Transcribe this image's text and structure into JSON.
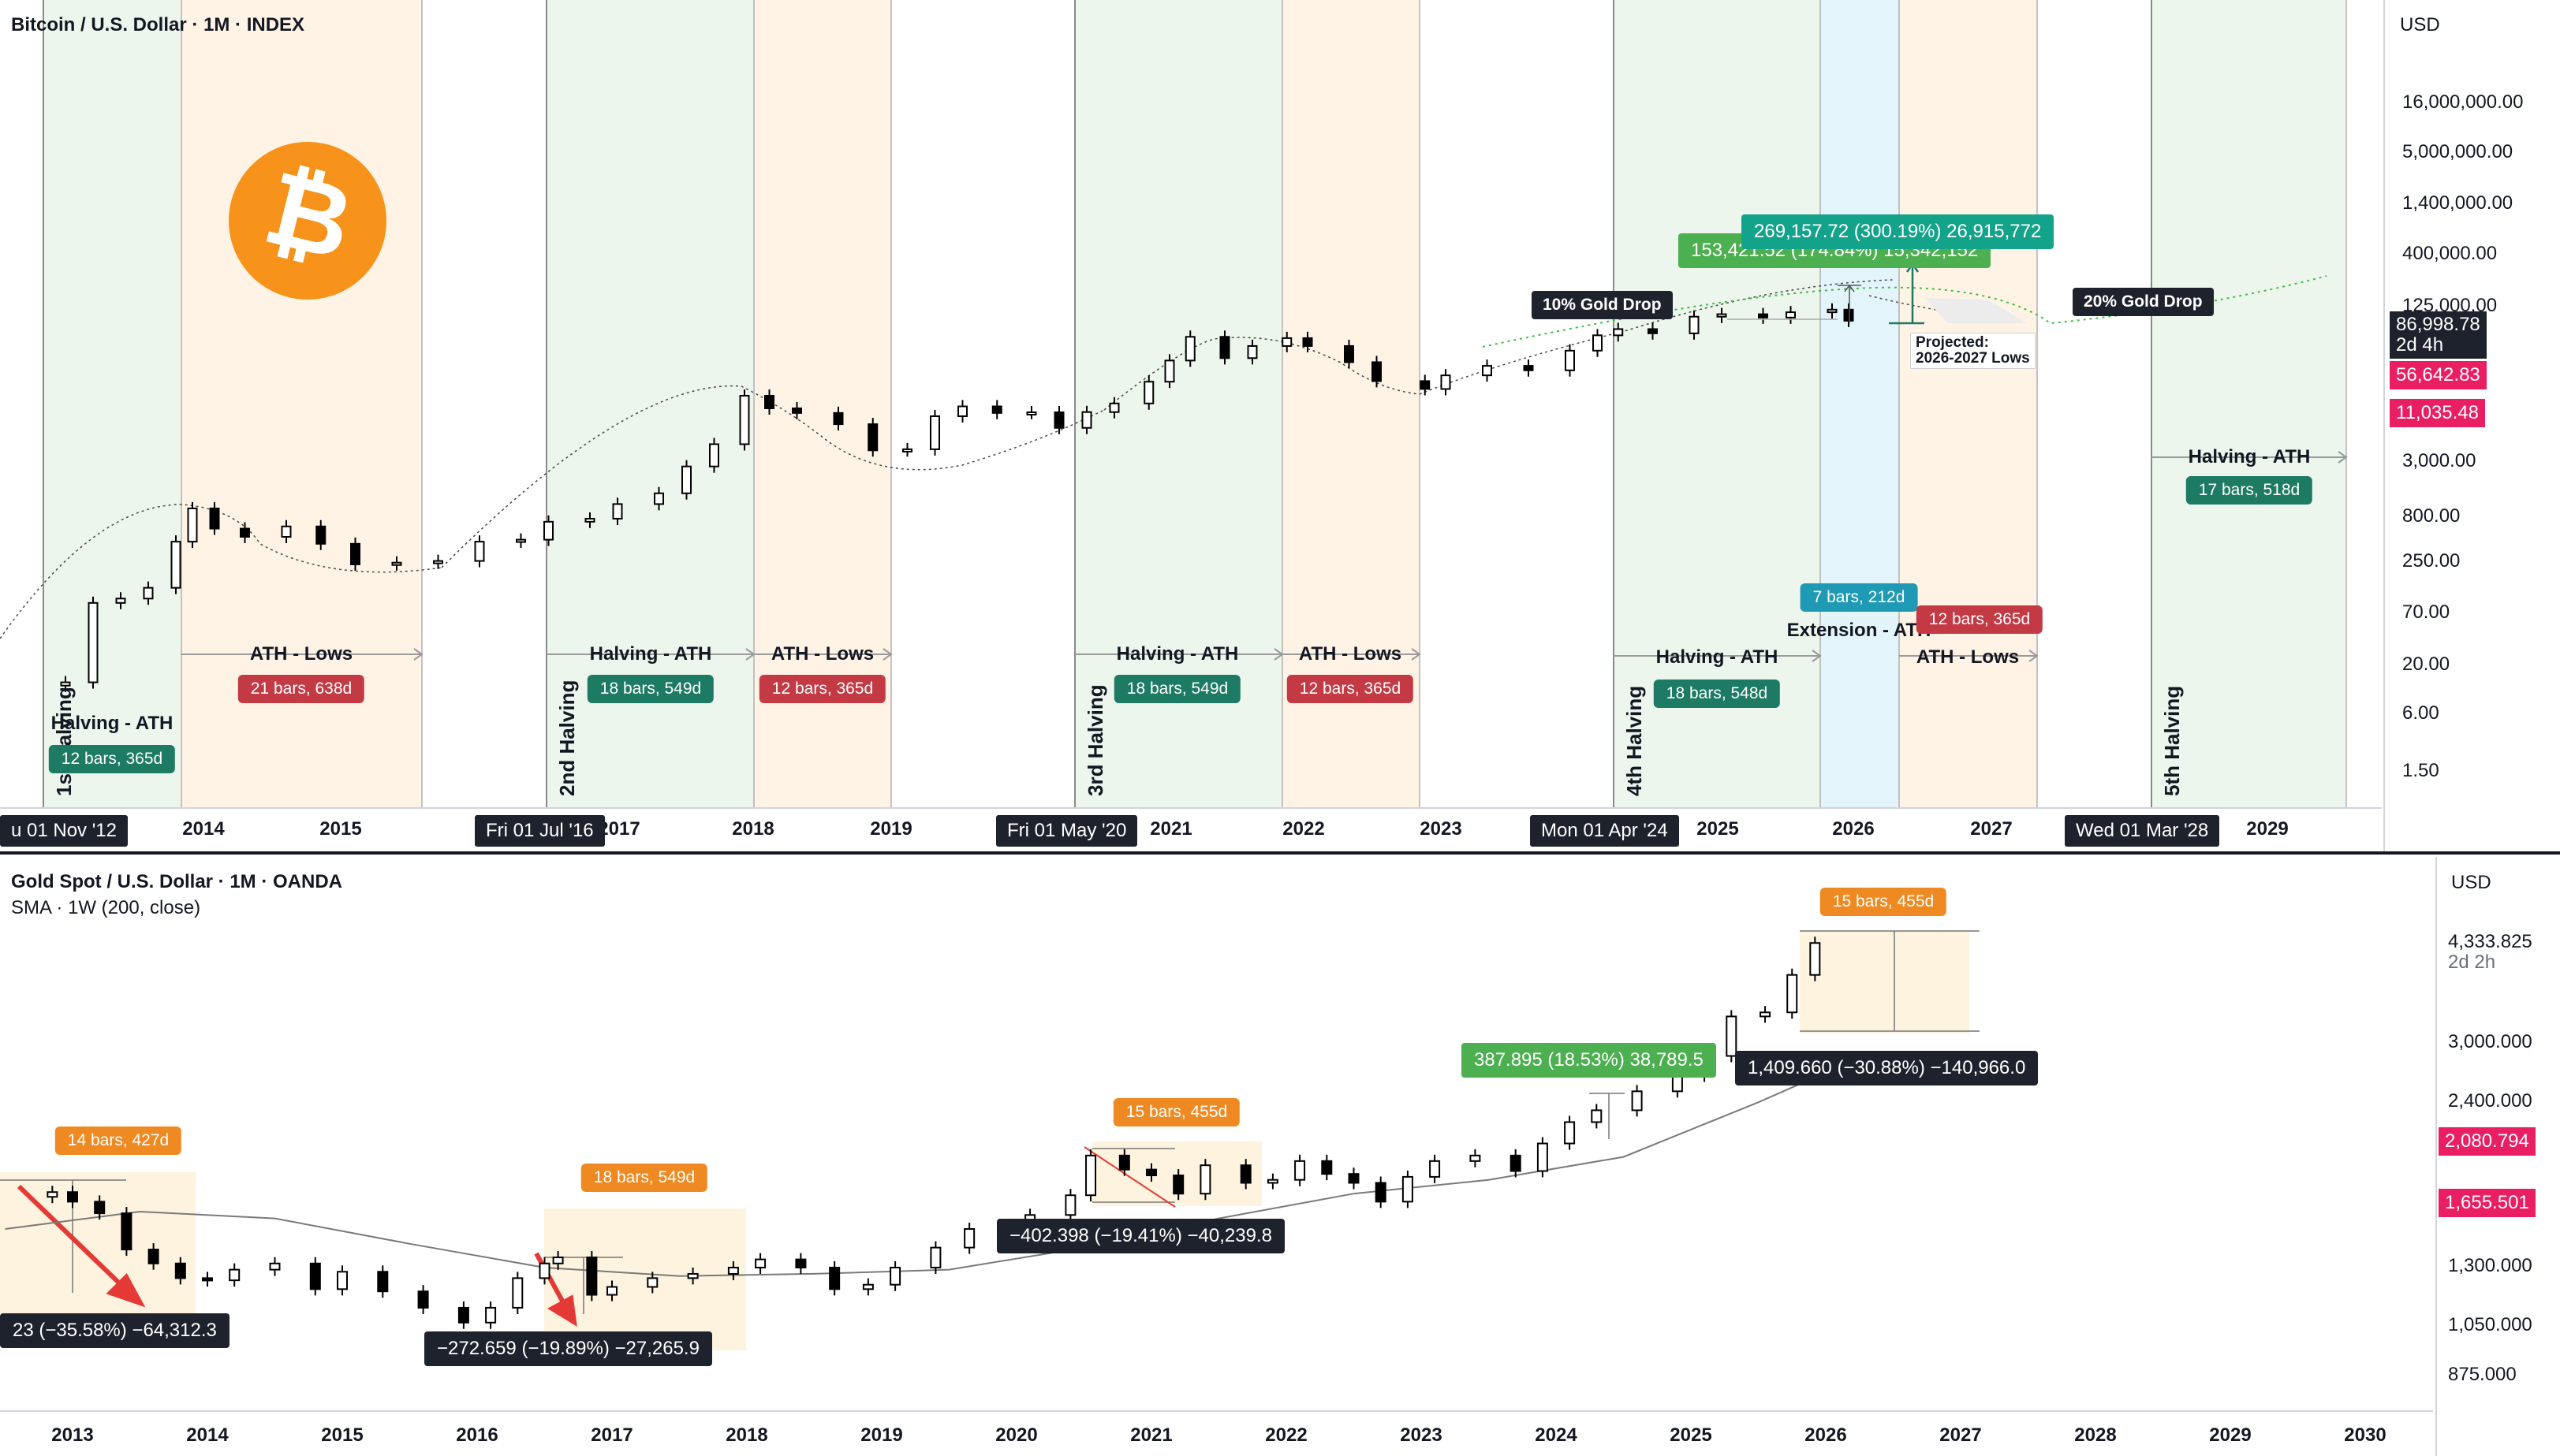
{
  "btc_pane": {
    "title": "Bitcoin / U.S. Dollar · 1M · INDEX",
    "currency": "USD",
    "price_scale": [
      "16,000,000.00",
      "5,000,000.00",
      "1,400,000.00",
      "400,000.00",
      "125,000.00",
      "3,000.00",
      "800.00",
      "250.00",
      "70.00",
      "20.00",
      "6.00",
      "1.50"
    ],
    "last_price": "86,998.78",
    "countdown": "2d 4h",
    "price_tag_2": "56,642.83",
    "price_tag_3": "11,035.48",
    "years": [
      "2014",
      "2015",
      "2017",
      "2018",
      "2019",
      "2021",
      "2022",
      "2023",
      "2025",
      "2026",
      "2027",
      "2029"
    ],
    "date_flags": [
      "u 01 Nov '12",
      "Fri 01 Jul '16",
      "Fri 01 May '20",
      "Mon 01 Apr '24",
      "Wed 01 Mar '28"
    ],
    "halvings": [
      "1st Halving",
      "2nd Halving",
      "3rd Halving",
      "4th Halving",
      "5th Halving"
    ],
    "labels": {
      "halving_ath": "Halving - ATH",
      "ath_lows": "ATH - Lows",
      "extension_ath": "Extension - ATH"
    },
    "pills": {
      "c1_halving_ath": "12 bars, 365d",
      "c1_ath_lows": "21 bars, 638d",
      "c2_halving_ath": "18 bars, 549d",
      "c2_ath_lows": "12 bars, 365d",
      "c3_halving_ath": "18 bars, 549d",
      "c3_ath_lows": "12 bars, 365d",
      "c4_halving_ath": "18 bars, 548d",
      "c4_extension": "7 bars, 212d",
      "c4_ath_lows": "12 bars, 365d",
      "c5_halving_ath": "17 bars, 518d"
    },
    "gold_drop_10": "10% Gold Drop",
    "gold_drop_20": "20% Gold Drop",
    "projected_note": "Projected:\n2026-2027 Lows",
    "measure_top": "269,157.72 (300.19%) 26,915,772",
    "measure_under": "153,421.52 (174.84%) 15,342,152"
  },
  "gold_pane": {
    "title": "Gold Spot / U.S. Dollar · 1M · OANDA",
    "indicator": "SMA · 1W (200, close)",
    "currency": "USD",
    "price_scale": [
      "4,333.825",
      "3,000.000",
      "2,400.000",
      "1,300.000",
      "1,050.000",
      "875.000"
    ],
    "last_price": "4,333.825",
    "countdown": "2d 2h",
    "price_tag_2": "2,080.794",
    "price_tag_3": "1,655.501",
    "years": [
      "2013",
      "2014",
      "2015",
      "2016",
      "2017",
      "2018",
      "2019",
      "2020",
      "2021",
      "2022",
      "2023",
      "2024",
      "2025",
      "2026",
      "2027",
      "2028",
      "2029",
      "2030"
    ],
    "pills": {
      "p1": "14 bars, 427d",
      "p2": "18 bars, 549d",
      "p3": "15 bars, 455d",
      "p4": "15 bars, 455d"
    },
    "measures": {
      "m1": "23 (−35.58%) −64,312.3",
      "m2": "−272.659 (−19.89%) −27,265.9",
      "m3": "−402.398 (−19.41%) −40,239.8",
      "m4": "387.895 (18.53%) 38,789.5",
      "m5": "1,409.660 (−30.88%) −140,966.0"
    }
  },
  "colors": {
    "halving_ath_zone": "#e8f5e9",
    "ath_lows_zone": "#fff3e6",
    "extension_zone": "#e3f4fb",
    "bitcoin_orange": "#f7931a",
    "candle_up": "#ffffff",
    "candle_down": "#000000"
  },
  "icons": {
    "bitcoin_logo": "bitcoin-logo-icon"
  },
  "chart_data": [
    {
      "type": "candlestick",
      "title": "Bitcoin / U.S. Dollar · 1M · INDEX",
      "y_scale": "log",
      "x_range": [
        2012.5,
        2030.0
      ],
      "series": [
        {
          "close": [
            [
              2012.9,
              12
            ],
            [
              2013.0,
              13
            ],
            [
              2013.2,
              90
            ],
            [
              2013.4,
              100
            ],
            [
              2013.6,
              130
            ],
            [
              2013.8,
              400
            ],
            [
              2013.92,
              900
            ],
            [
              2014.08,
              550
            ],
            [
              2014.3,
              450
            ],
            [
              2014.6,
              580
            ],
            [
              2014.85,
              380
            ],
            [
              2015.1,
              230
            ],
            [
              2015.4,
              240
            ],
            [
              2015.7,
              250
            ],
            [
              2016.0,
              400
            ],
            [
              2016.3,
              420
            ],
            [
              2016.5,
              650
            ],
            [
              2016.8,
              700
            ],
            [
              2017.0,
              1000
            ],
            [
              2017.3,
              1300
            ],
            [
              2017.5,
              2500
            ],
            [
              2017.7,
              4300
            ],
            [
              2017.92,
              14000
            ],
            [
              2018.1,
              10300
            ],
            [
              2018.3,
              9200
            ],
            [
              2018.6,
              7000
            ],
            [
              2018.85,
              3700
            ],
            [
              2019.1,
              3800
            ],
            [
              2019.3,
              8500
            ],
            [
              2019.5,
              10800
            ],
            [
              2019.75,
              9200
            ],
            [
              2020.0,
              9350
            ],
            [
              2020.2,
              6400
            ],
            [
              2020.4,
              9400
            ],
            [
              2020.6,
              11600
            ],
            [
              2020.85,
              19700
            ],
            [
              2021.0,
              33000
            ],
            [
              2021.15,
              58800
            ],
            [
              2021.4,
              35000
            ],
            [
              2021.6,
              47000
            ],
            [
              2021.85,
              57000
            ],
            [
              2022.0,
              47000
            ],
            [
              2022.3,
              31700
            ],
            [
              2022.5,
              20000
            ],
            [
              2022.85,
              16500
            ],
            [
              2023.0,
              23000
            ],
            [
              2023.3,
              29000
            ],
            [
              2023.6,
              26000
            ],
            [
              2023.9,
              42000
            ],
            [
              2024.1,
              61000
            ],
            [
              2024.25,
              71000
            ],
            [
              2024.5,
              64000
            ],
            [
              2024.8,
              96000
            ],
            [
              2025.0,
              102000
            ],
            [
              2025.3,
              94000
            ],
            [
              2025.5,
              107000
            ],
            [
              2025.8,
              114000
            ],
            [
              2025.92,
              86998.78
            ]
          ]
        }
      ],
      "cycle_segments": [
        {
          "name": "Halving - ATH",
          "start": 2012.83,
          "end": 2013.92,
          "duration": "12 bars, 365d"
        },
        {
          "name": "ATH - Lows",
          "start": 2013.92,
          "end": 2015.67,
          "duration": "21 bars, 638d"
        },
        {
          "name": "Halving - ATH",
          "start": 2016.5,
          "end": 2017.92,
          "duration": "18 bars, 549d"
        },
        {
          "name": "ATH - Lows",
          "start": 2017.92,
          "end": 2018.92,
          "duration": "12 bars, 365d"
        },
        {
          "name": "Halving - ATH",
          "start": 2020.33,
          "end": 2021.83,
          "duration": "18 bars, 549d"
        },
        {
          "name": "ATH - Lows",
          "start": 2021.83,
          "end": 2022.83,
          "duration": "12 bars, 365d"
        },
        {
          "name": "Halving - ATH",
          "start": 2024.25,
          "end": 2025.75,
          "duration": "18 bars, 548d"
        },
        {
          "name": "Extension - ATH",
          "start": 2025.75,
          "end": 2026.33,
          "duration": "7 bars, 212d"
        },
        {
          "name": "ATH - Lows",
          "start": 2026.33,
          "end": 2027.33,
          "duration": "12 bars, 365d"
        },
        {
          "name": "Halving - ATH",
          "start": 2028.17,
          "end": 2029.58,
          "duration": "17 bars, 518d"
        }
      ]
    },
    {
      "type": "candlestick",
      "title": "Gold Spot / U.S. Dollar · 1M · OANDA",
      "y_scale": "log",
      "x_range": [
        2012.5,
        2030.0
      ],
      "series": [
        {
          "name": "price",
          "close": [
            [
              2012.6,
              1690
            ],
            [
              2012.85,
              1720
            ],
            [
              2013.0,
              1660
            ],
            [
              2013.2,
              1590
            ],
            [
              2013.4,
              1390
            ],
            [
              2013.6,
              1320
            ],
            [
              2013.8,
              1250
            ],
            [
              2014.0,
              1240
            ],
            [
              2014.2,
              1290
            ],
            [
              2014.5,
              1320
            ],
            [
              2014.8,
              1200
            ],
            [
              2015.0,
              1280
            ],
            [
              2015.3,
              1190
            ],
            [
              2015.6,
              1120
            ],
            [
              2015.9,
              1060
            ],
            [
              2016.1,
              1120
            ],
            [
              2016.3,
              1250
            ],
            [
              2016.5,
              1320
            ],
            [
              2016.6,
              1350
            ],
            [
              2016.85,
              1175
            ],
            [
              2017.0,
              1210
            ],
            [
              2017.3,
              1250
            ],
            [
              2017.6,
              1270
            ],
            [
              2017.9,
              1300
            ],
            [
              2018.1,
              1340
            ],
            [
              2018.4,
              1300
            ],
            [
              2018.65,
              1200
            ],
            [
              2018.9,
              1220
            ],
            [
              2019.1,
              1300
            ],
            [
              2019.4,
              1400
            ],
            [
              2019.65,
              1500
            ],
            [
              2019.9,
              1520
            ],
            [
              2020.1,
              1580
            ],
            [
              2020.4,
              1700
            ],
            [
              2020.55,
              1970
            ],
            [
              2020.8,
              1870
            ],
            [
              2021.0,
              1830
            ],
            [
              2021.2,
              1710
            ],
            [
              2021.4,
              1900
            ],
            [
              2021.7,
              1780
            ],
            [
              2021.9,
              1800
            ],
            [
              2022.1,
              1930
            ],
            [
              2022.3,
              1840
            ],
            [
              2022.5,
              1780
            ],
            [
              2022.7,
              1660
            ],
            [
              2022.9,
              1820
            ],
            [
              2023.1,
              1930
            ],
            [
              2023.4,
              1970
            ],
            [
              2023.7,
              1860
            ],
            [
              2023.9,
              2060
            ],
            [
              2024.1,
              2230
            ],
            [
              2024.3,
              2330
            ],
            [
              2024.6,
              2500
            ],
            [
              2024.9,
              2650
            ],
            [
              2025.1,
              2850
            ],
            [
              2025.3,
              3300
            ],
            [
              2025.55,
              3350
            ],
            [
              2025.75,
              3850
            ],
            [
              2025.92,
              4333.825
            ]
          ]
        },
        {
          "name": "SMA · 1W (200, close)",
          "close": [
            [
              2012.5,
              1500
            ],
            [
              2013.5,
              1600
            ],
            [
              2014.5,
              1560
            ],
            [
              2015.5,
              1420
            ],
            [
              2016.5,
              1300
            ],
            [
              2017.5,
              1260
            ],
            [
              2018.5,
              1270
            ],
            [
              2019.5,
              1290
            ],
            [
              2020.5,
              1400
            ],
            [
              2021.5,
              1560
            ],
            [
              2022.5,
              1710
            ],
            [
              2023.5,
              1800
            ],
            [
              2024.5,
              1960
            ],
            [
              2025.5,
              2400
            ],
            [
              2025.95,
              2650
            ]
          ]
        }
      ],
      "measures": [
        {
          "label": "23 (−35.58%) −64,312.3",
          "duration": "14 bars, 427d"
        },
        {
          "label": "−272.659 (−19.89%) −27,265.9",
          "duration": "18 bars, 549d"
        },
        {
          "label": "−402.398 (−19.41%) −40,239.8",
          "duration": "15 bars, 455d"
        },
        {
          "label": "387.895 (18.53%) 38,789.5"
        },
        {
          "label": "1,409.660 (−30.88%) −140,966.0",
          "duration": "15 bars, 455d"
        }
      ]
    }
  ]
}
